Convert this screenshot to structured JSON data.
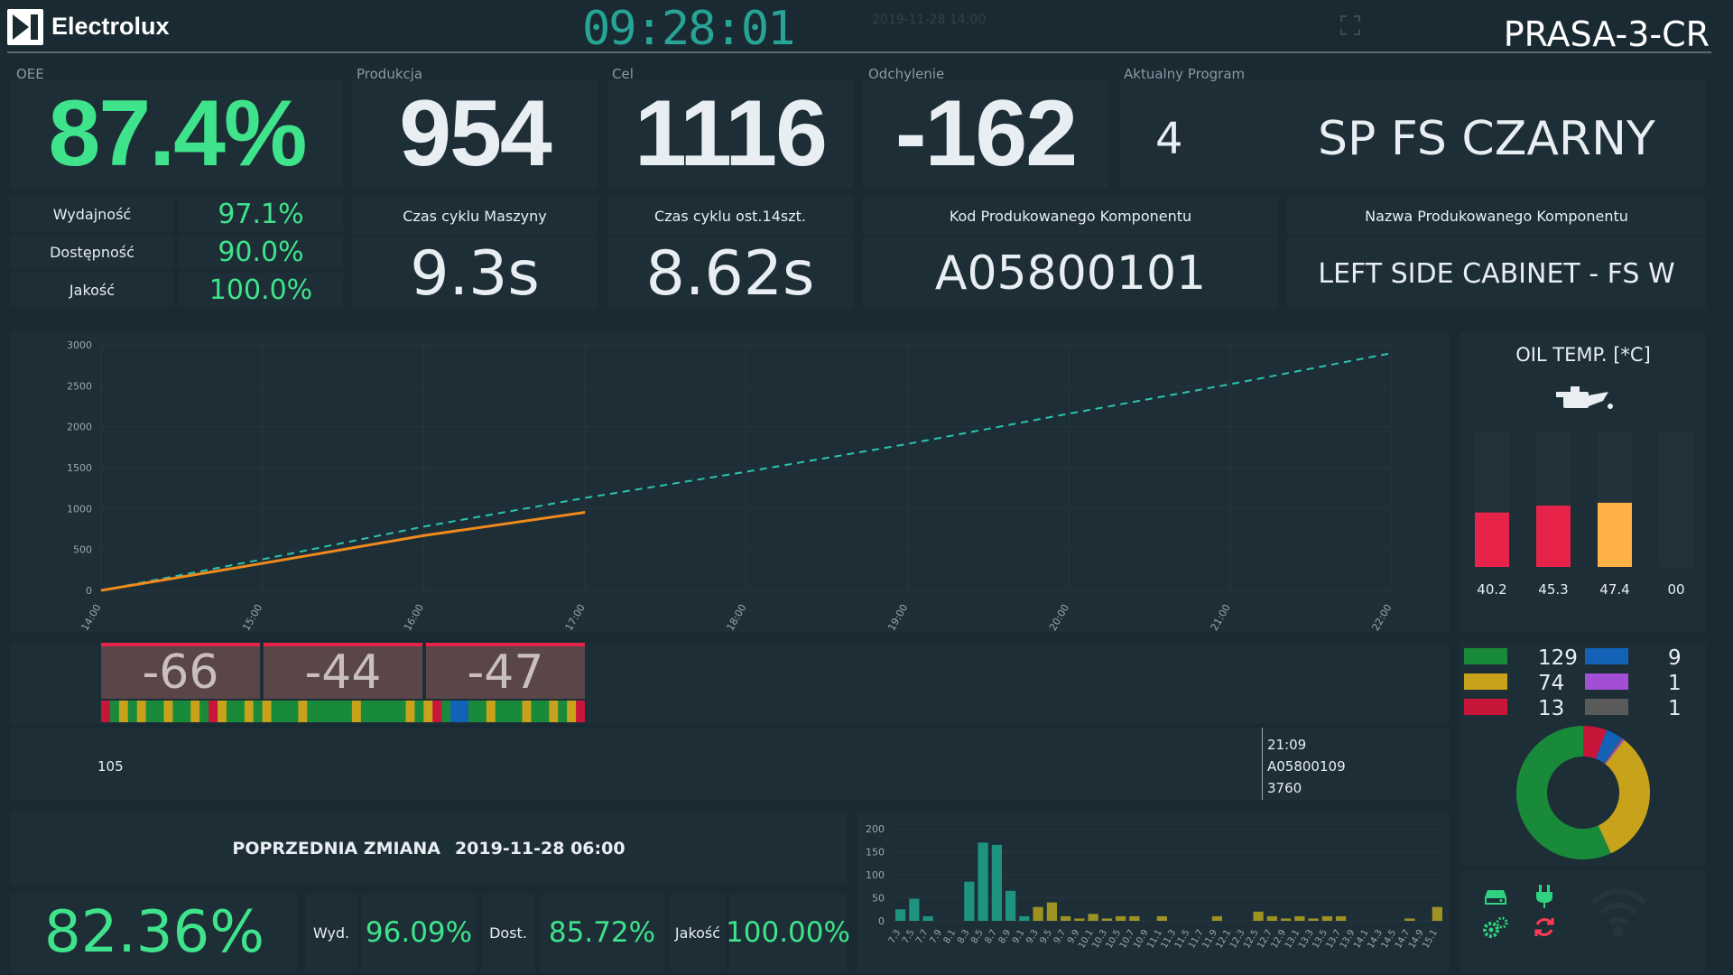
{
  "header": {
    "logo_text": "Electrolux",
    "clock": "09:28:01",
    "timestamp": "2019-11-28 14:00",
    "station": "PRASA-3-CR"
  },
  "kpi": {
    "oee": {
      "label": "OEE",
      "value": "87.4%"
    },
    "production": {
      "label": "Produkcja",
      "value": "954"
    },
    "target": {
      "label": "Cel",
      "value": "1116"
    },
    "deviation": {
      "label": "Odchylenie",
      "value": "-162"
    },
    "program": {
      "label": "Aktualny Program",
      "number": "4",
      "name": "SP FS CZARNY"
    }
  },
  "oee_breakdown": [
    {
      "label": "Wydajność",
      "value": "97.1%"
    },
    {
      "label": "Dostępność",
      "value": "90.0%"
    },
    {
      "label": "Jakość",
      "value": "100.0%"
    }
  ],
  "cycle": {
    "machine_label": "Czas cyklu Maszyny",
    "machine_value": "9.3s",
    "last14_label": "Czas cyklu ost.14szt.",
    "last14_value": "8.62s"
  },
  "component": {
    "code_label": "Kod Produkowanego Komponentu",
    "code_value": "A05800101",
    "name_label": "Nazwa Produkowanego Komponentu",
    "name_value": "LEFT SIDE CABINET - FS W"
  },
  "chart_data": [
    {
      "type": "line",
      "x": [
        "14:00",
        "15:00",
        "16:00",
        "17:00",
        "18:00",
        "19:00",
        "20:00",
        "21:00",
        "22:00"
      ],
      "ylim": [
        0,
        3000
      ],
      "yticks": [
        0,
        500,
        1000,
        1500,
        2000,
        2500,
        3000
      ],
      "series": [
        {
          "role": "target",
          "style": "dashed",
          "color": "#2cc4b0",
          "values": [
            0,
            380,
            780,
            1130,
            1450,
            1790,
            2160,
            2520,
            2900
          ]
        },
        {
          "role": "actual",
          "style": "solid",
          "color": "#f08a1a",
          "values": [
            0,
            330,
            670,
            954,
            null,
            null,
            null,
            null,
            null
          ]
        }
      ]
    },
    {
      "type": "bar",
      "categories": [
        "7.3",
        "7.5",
        "7.7",
        "7.9",
        "8.1",
        "8.3",
        "8.5",
        "8.7",
        "8.9",
        "9.1",
        "9.3",
        "9.5",
        "9.7",
        "9.9",
        "10.1",
        "10.3",
        "10.5",
        "10.7",
        "10.9",
        "11.1",
        "11.3",
        "11.5",
        "11.7",
        "11.9",
        "12.1",
        "12.3",
        "12.5",
        "12.7",
        "12.9",
        "13.1",
        "13.3",
        "13.5",
        "13.7",
        "13.9",
        "14.1",
        "14.3",
        "14.5",
        "14.7",
        "14.9",
        "15.1"
      ],
      "ylim": [
        0,
        200
      ],
      "yticks": [
        0,
        50,
        100,
        150,
        200
      ],
      "series": [
        {
          "values": [
            25,
            48,
            10,
            0,
            0,
            85,
            170,
            165,
            65,
            10,
            30,
            40,
            10,
            5,
            15,
            5,
            10,
            10,
            0,
            10,
            0,
            0,
            0,
            10,
            0,
            0,
            20,
            10,
            5,
            10,
            5,
            10,
            10,
            0,
            0,
            0,
            0,
            5,
            0,
            30
          ]
        }
      ],
      "colors": {
        "low": "#1fa58c",
        "high": "#b5a320"
      }
    },
    {
      "type": "pie",
      "values": [
        129,
        74,
        13,
        9,
        1,
        1
      ],
      "colors": [
        "#198a3a",
        "#c7a21a",
        "#c8153a",
        "#1461b8",
        "#a24fd6",
        "#5a5a5a"
      ]
    }
  ],
  "oil_temp": {
    "title": "OIL TEMP. [*C]",
    "icon": "oil-can-icon",
    "bars": [
      {
        "label": "40.2",
        "value": 40.2,
        "color": "#e8234a"
      },
      {
        "label": "45.3",
        "value": 45.3,
        "color": "#e8234a"
      },
      {
        "label": "47.4",
        "value": 47.4,
        "color": "#ffb046"
      },
      {
        "label": "00",
        "value": 0,
        "color": "#e8234a"
      }
    ],
    "max": 100
  },
  "deviations": {
    "values": [
      "-66",
      "-44",
      "-47"
    ]
  },
  "timeline": {
    "left_label": "105",
    "marker_time": "21:09",
    "marker_code": "A05800109",
    "marker_count": "3760"
  },
  "legend": [
    {
      "value": "129",
      "color": "#198a3a"
    },
    {
      "value": "9",
      "color": "#1461b8"
    },
    {
      "value": "74",
      "color": "#c7a21a"
    },
    {
      "value": "1",
      "color": "#a24fd6"
    },
    {
      "value": "13",
      "color": "#c8153a"
    },
    {
      "value": "1",
      "color": "#5a5a5a"
    }
  ],
  "previous_shift": {
    "label": "POPRZEDNIA ZMIANA",
    "date": "2019-11-28 06:00",
    "oee": "82.36%",
    "wyd_label": "Wyd.",
    "wyd_value": "96.09%",
    "dost_label": "Dost.",
    "dost_value": "85.72%",
    "jakosc_label": "Jakość",
    "jakosc_value": "100.00%"
  },
  "status_icons": [
    "server-icon",
    "plug-icon",
    "gears-icon",
    "refresh-icon",
    "wifi-icon"
  ]
}
